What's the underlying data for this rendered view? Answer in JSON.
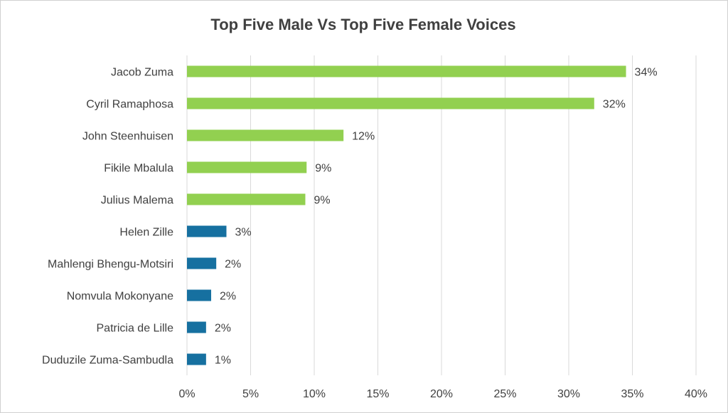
{
  "chart_data": {
    "type": "bar",
    "orientation": "horizontal",
    "title": "Top Five Male Vs Top Five Female Voices",
    "xlabel": "",
    "ylabel": "",
    "xlim": [
      0,
      40
    ],
    "grid": true,
    "legend": "none",
    "categories": [
      "Jacob Zuma",
      "Cyril Ramaphosa",
      "John Steenhuisen",
      "Fikile Mbalula",
      "Julius Malema",
      "Helen Zille",
      "Mahlengi Bhengu-Motsiri",
      "Nomvula Mokonyane",
      "Patricia de Lille",
      "Duduzile Zuma-Sambudla"
    ],
    "values": [
      34.5,
      32.0,
      12.3,
      9.4,
      9.3,
      3.1,
      2.3,
      1.9,
      1.5,
      1.5
    ],
    "data_labels": [
      "34%",
      "32%",
      "12%",
      "9%",
      "9%",
      "3%",
      "2%",
      "2%",
      "2%",
      "1%"
    ],
    "bar_colors": [
      "#92d050",
      "#92d050",
      "#92d050",
      "#92d050",
      "#92d050",
      "#1670a0",
      "#1670a0",
      "#1670a0",
      "#1670a0",
      "#1670a0"
    ],
    "xticks": [
      "0%",
      "5%",
      "10%",
      "15%",
      "20%",
      "25%",
      "30%",
      "35%",
      "40%"
    ]
  }
}
